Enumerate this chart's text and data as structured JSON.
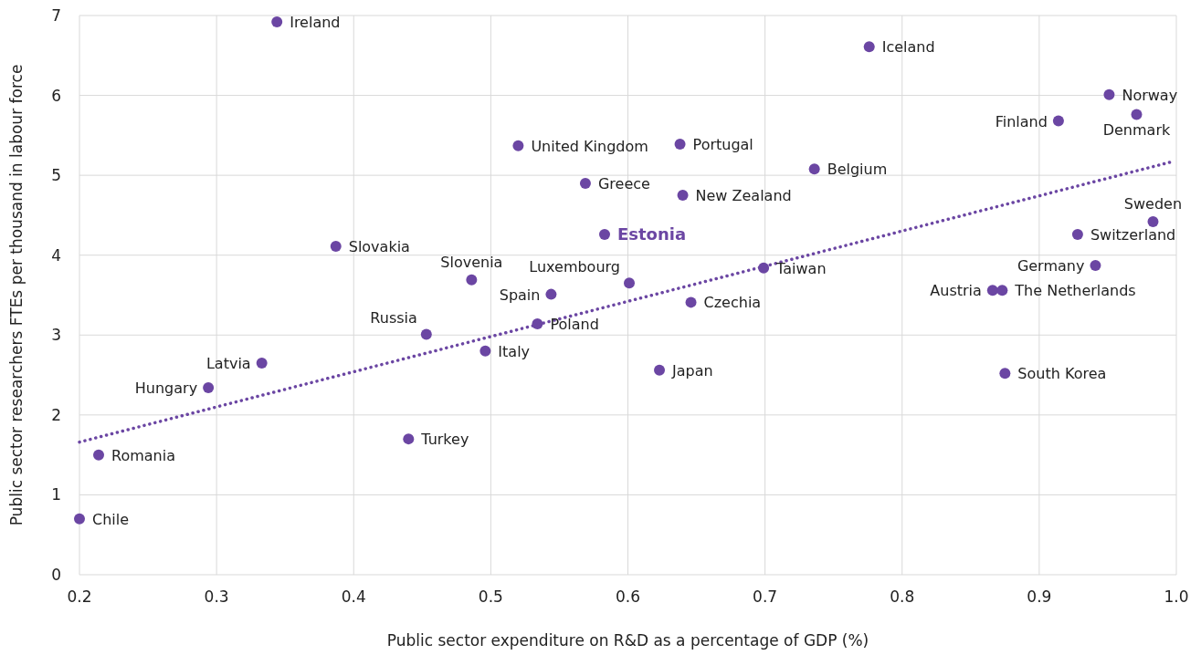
{
  "chart_data": {
    "type": "scatter",
    "xlabel": "Public sector expenditure on R&D as a percentage of GDP (%)",
    "ylabel": "Public sector researchers FTEs per thousand in labour force",
    "xlim": [
      0.2,
      1.0
    ],
    "ylim": [
      0,
      7
    ],
    "xticks": [
      0.2,
      0.3,
      0.4,
      0.5,
      0.6,
      0.7,
      0.8,
      0.9,
      {
        "value": 1.0,
        "label": "1.0"
      }
    ],
    "yticks": [
      0,
      1,
      2,
      3,
      4,
      5,
      6,
      7
    ],
    "grid": true,
    "marker": "circle",
    "series": [
      {
        "color": "#6b46a3",
        "x": [
          0.344,
          0.776,
          0.951,
          0.971,
          0.914,
          0.52,
          0.638,
          0.736,
          0.569,
          0.64,
          0.983,
          0.583,
          0.928,
          0.387,
          0.486,
          0.941,
          0.699,
          0.601,
          0.866,
          0.873,
          0.544,
          0.646,
          0.534,
          0.453,
          0.496,
          0.333,
          0.623,
          0.875,
          0.294,
          0.44,
          0.214,
          0.2
        ],
        "values": [
          6.92,
          6.61,
          6.01,
          5.76,
          5.68,
          5.37,
          5.39,
          5.08,
          4.9,
          4.75,
          4.42,
          4.26,
          4.26,
          4.11,
          3.69,
          3.87,
          3.84,
          3.65,
          3.56,
          3.56,
          3.51,
          3.41,
          3.14,
          3.01,
          2.8,
          2.65,
          2.56,
          2.52,
          2.34,
          1.7,
          1.5,
          0.7
        ]
      },
      {
        "type": "line",
        "color": "#6b46a3",
        "line_style": "dotted",
        "marker": "none",
        "x": [
          0.2,
          0.997
        ],
        "values": [
          1.66,
          5.17
        ]
      }
    ],
    "annotations": [
      {
        "text": "Ireland",
        "x": 0.344,
        "y": 6.92
      },
      {
        "text": "Iceland",
        "x": 0.776,
        "y": 6.61
      },
      {
        "text": "Norway",
        "x": 0.951,
        "y": 6.01
      },
      {
        "text": "Denmark",
        "x": 0.971,
        "y": 5.76
      },
      {
        "text": "Finland",
        "x": 0.914,
        "y": 5.68
      },
      {
        "text": "United Kingdom",
        "x": 0.52,
        "y": 5.37
      },
      {
        "text": "Portugal",
        "x": 0.638,
        "y": 5.39
      },
      {
        "text": "Belgium",
        "x": 0.736,
        "y": 5.08
      },
      {
        "text": "Greece",
        "x": 0.569,
        "y": 4.9
      },
      {
        "text": "New Zealand",
        "x": 0.64,
        "y": 4.75
      },
      {
        "text": "Sweden",
        "x": 0.983,
        "y": 4.42
      },
      {
        "text": "Estonia",
        "x": 0.583,
        "y": 4.26
      },
      {
        "text": "Switzerland",
        "x": 0.928,
        "y": 4.26
      },
      {
        "text": "Slovakia",
        "x": 0.387,
        "y": 4.11
      },
      {
        "text": "Slovenia",
        "x": 0.486,
        "y": 3.69
      },
      {
        "text": "Germany",
        "x": 0.941,
        "y": 3.87
      },
      {
        "text": "Taiwan",
        "x": 0.699,
        "y": 3.84
      },
      {
        "text": "Luxembourg",
        "x": 0.601,
        "y": 3.65
      },
      {
        "text": "Austria",
        "x": 0.866,
        "y": 3.56
      },
      {
        "text": "The Netherlands",
        "x": 0.873,
        "y": 3.56
      },
      {
        "text": "Spain",
        "x": 0.544,
        "y": 3.51
      },
      {
        "text": "Czechia",
        "x": 0.646,
        "y": 3.41
      },
      {
        "text": "Poland",
        "x": 0.534,
        "y": 3.14
      },
      {
        "text": "Russia",
        "x": 0.453,
        "y": 3.01
      },
      {
        "text": "Italy",
        "x": 0.496,
        "y": 2.8
      },
      {
        "text": "Latvia",
        "x": 0.333,
        "y": 2.65
      },
      {
        "text": "Japan",
        "x": 0.623,
        "y": 2.56
      },
      {
        "text": "South Korea",
        "x": 0.875,
        "y": 2.52
      },
      {
        "text": "Hungary",
        "x": 0.294,
        "y": 2.34
      },
      {
        "text": "Turkey",
        "x": 0.44,
        "y": 1.7
      },
      {
        "text": "Romania",
        "x": 0.214,
        "y": 1.5
      },
      {
        "text": "Chile",
        "x": 0.2,
        "y": 0.7
      }
    ]
  }
}
